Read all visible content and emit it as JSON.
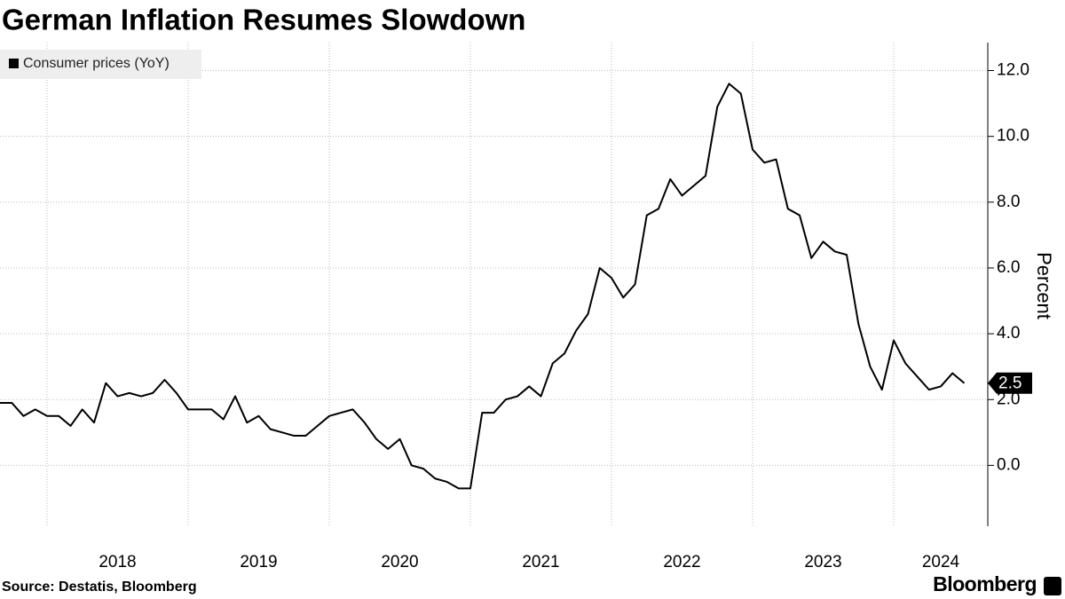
{
  "chart_data": {
    "type": "line",
    "title": "German Inflation Resumes Slowdown",
    "y_axis_label": "Percent",
    "source": "Source: Destatis, Bloomberg",
    "brand": "Bloomberg",
    "x": [
      "2017-08",
      "2017-09",
      "2017-10",
      "2017-11",
      "2017-12",
      "2018-01",
      "2018-02",
      "2018-03",
      "2018-04",
      "2018-05",
      "2018-06",
      "2018-07",
      "2018-08",
      "2018-09",
      "2018-10",
      "2018-11",
      "2018-12",
      "2019-01",
      "2019-02",
      "2019-03",
      "2019-04",
      "2019-05",
      "2019-06",
      "2019-07",
      "2019-08",
      "2019-09",
      "2019-10",
      "2019-11",
      "2019-12",
      "2020-01",
      "2020-02",
      "2020-03",
      "2020-04",
      "2020-05",
      "2020-06",
      "2020-07",
      "2020-08",
      "2020-09",
      "2020-10",
      "2020-11",
      "2020-12",
      "2021-01",
      "2021-02",
      "2021-03",
      "2021-04",
      "2021-05",
      "2021-06",
      "2021-07",
      "2021-08",
      "2021-09",
      "2021-10",
      "2021-11",
      "2021-12",
      "2022-01",
      "2022-02",
      "2022-03",
      "2022-04",
      "2022-05",
      "2022-06",
      "2022-07",
      "2022-08",
      "2022-09",
      "2022-10",
      "2022-11",
      "2022-12",
      "2023-01",
      "2023-02",
      "2023-03",
      "2023-04",
      "2023-05",
      "2023-06",
      "2023-07",
      "2023-08",
      "2023-09",
      "2023-10",
      "2023-11",
      "2023-12",
      "2024-01",
      "2024-02",
      "2024-03",
      "2024-04",
      "2024-05",
      "2024-06"
    ],
    "series": [
      {
        "name": "Consumer prices (YoY)",
        "color": "#000000",
        "values": [
          1.9,
          1.9,
          1.5,
          1.7,
          1.5,
          1.5,
          1.2,
          1.7,
          1.3,
          2.5,
          2.1,
          2.2,
          2.1,
          2.2,
          2.6,
          2.2,
          1.7,
          1.7,
          1.7,
          1.4,
          2.1,
          1.3,
          1.5,
          1.1,
          1.0,
          0.9,
          0.9,
          1.2,
          1.5,
          1.6,
          1.7,
          1.3,
          0.8,
          0.5,
          0.8,
          0.0,
          -0.1,
          -0.4,
          -0.5,
          -0.7,
          -0.7,
          1.6,
          1.6,
          2.0,
          2.1,
          2.4,
          2.1,
          3.1,
          3.4,
          4.1,
          4.6,
          6.0,
          5.7,
          5.1,
          5.5,
          7.6,
          7.8,
          8.7,
          8.2,
          8.5,
          8.8,
          10.9,
          11.6,
          11.3,
          9.6,
          9.2,
          9.3,
          7.8,
          7.6,
          6.3,
          6.8,
          6.5,
          6.4,
          4.3,
          3.0,
          2.3,
          3.8,
          3.1,
          2.7,
          2.3,
          2.4,
          2.8,
          2.5
        ]
      }
    ],
    "xlim": [
      "2017-08",
      "2024-08"
    ],
    "xticks": [
      2018,
      2019,
      2020,
      2021,
      2022,
      2023,
      2024
    ],
    "ylim": [
      -1.85,
      12.85
    ],
    "yticks": [
      {
        "value": 0,
        "label": "0.0"
      },
      {
        "value": 2,
        "label": "2.0"
      },
      {
        "value": 4,
        "label": "4.0"
      },
      {
        "value": 6,
        "label": "6.0"
      },
      {
        "value": 8,
        "label": "8.0"
      },
      {
        "value": 10,
        "label": "10.0"
      },
      {
        "value": 12,
        "label": "12.0"
      }
    ],
    "grid": true,
    "legend": "upper left",
    "last_value_tag": true
  }
}
